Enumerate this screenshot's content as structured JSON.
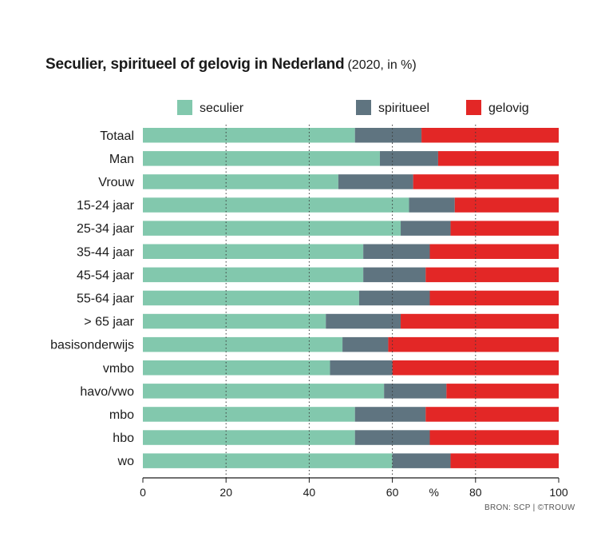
{
  "title": {
    "main": "Seculier, spiritueel of gelovig in Nederland",
    "sub": "(2020, in %)"
  },
  "source": "BRON: SCP | ©TROUW",
  "colors": {
    "seculier": "#82c8ad",
    "spiritueel": "#5f7480",
    "gelovig": "#e32726"
  },
  "chart_data": {
    "type": "bar",
    "orientation": "horizontal",
    "stacked": true,
    "categories": [
      "Totaal",
      "Man",
      "Vrouw",
      "15-24 jaar",
      "25-34 jaar",
      "35-44 jaar",
      "45-54 jaar",
      "55-64 jaar",
      "> 65 jaar",
      "basisonderwijs",
      "vmbo",
      "havo/vwo",
      "mbo",
      "hbo",
      "wo"
    ],
    "series": [
      {
        "name": "seculier",
        "color": "#82c8ad",
        "values": [
          51,
          57,
          47,
          64,
          62,
          53,
          53,
          52,
          44,
          48,
          45,
          58,
          51,
          51,
          60
        ]
      },
      {
        "name": "spiritueel",
        "color": "#5f7480",
        "values": [
          16,
          14,
          18,
          11,
          12,
          16,
          15,
          17,
          18,
          11,
          15,
          15,
          17,
          18,
          14
        ]
      },
      {
        "name": "gelovig",
        "color": "#e32726",
        "values": [
          33,
          29,
          35,
          25,
          26,
          31,
          32,
          31,
          38,
          41,
          40,
          27,
          32,
          31,
          26
        ]
      }
    ],
    "xlim": [
      0,
      100
    ],
    "xticks": [
      "0",
      "20",
      "40",
      "60",
      "%",
      "80",
      "100"
    ],
    "xlabel": "",
    "ylabel": "",
    "grid": "vertical dotted",
    "legend": "top"
  }
}
